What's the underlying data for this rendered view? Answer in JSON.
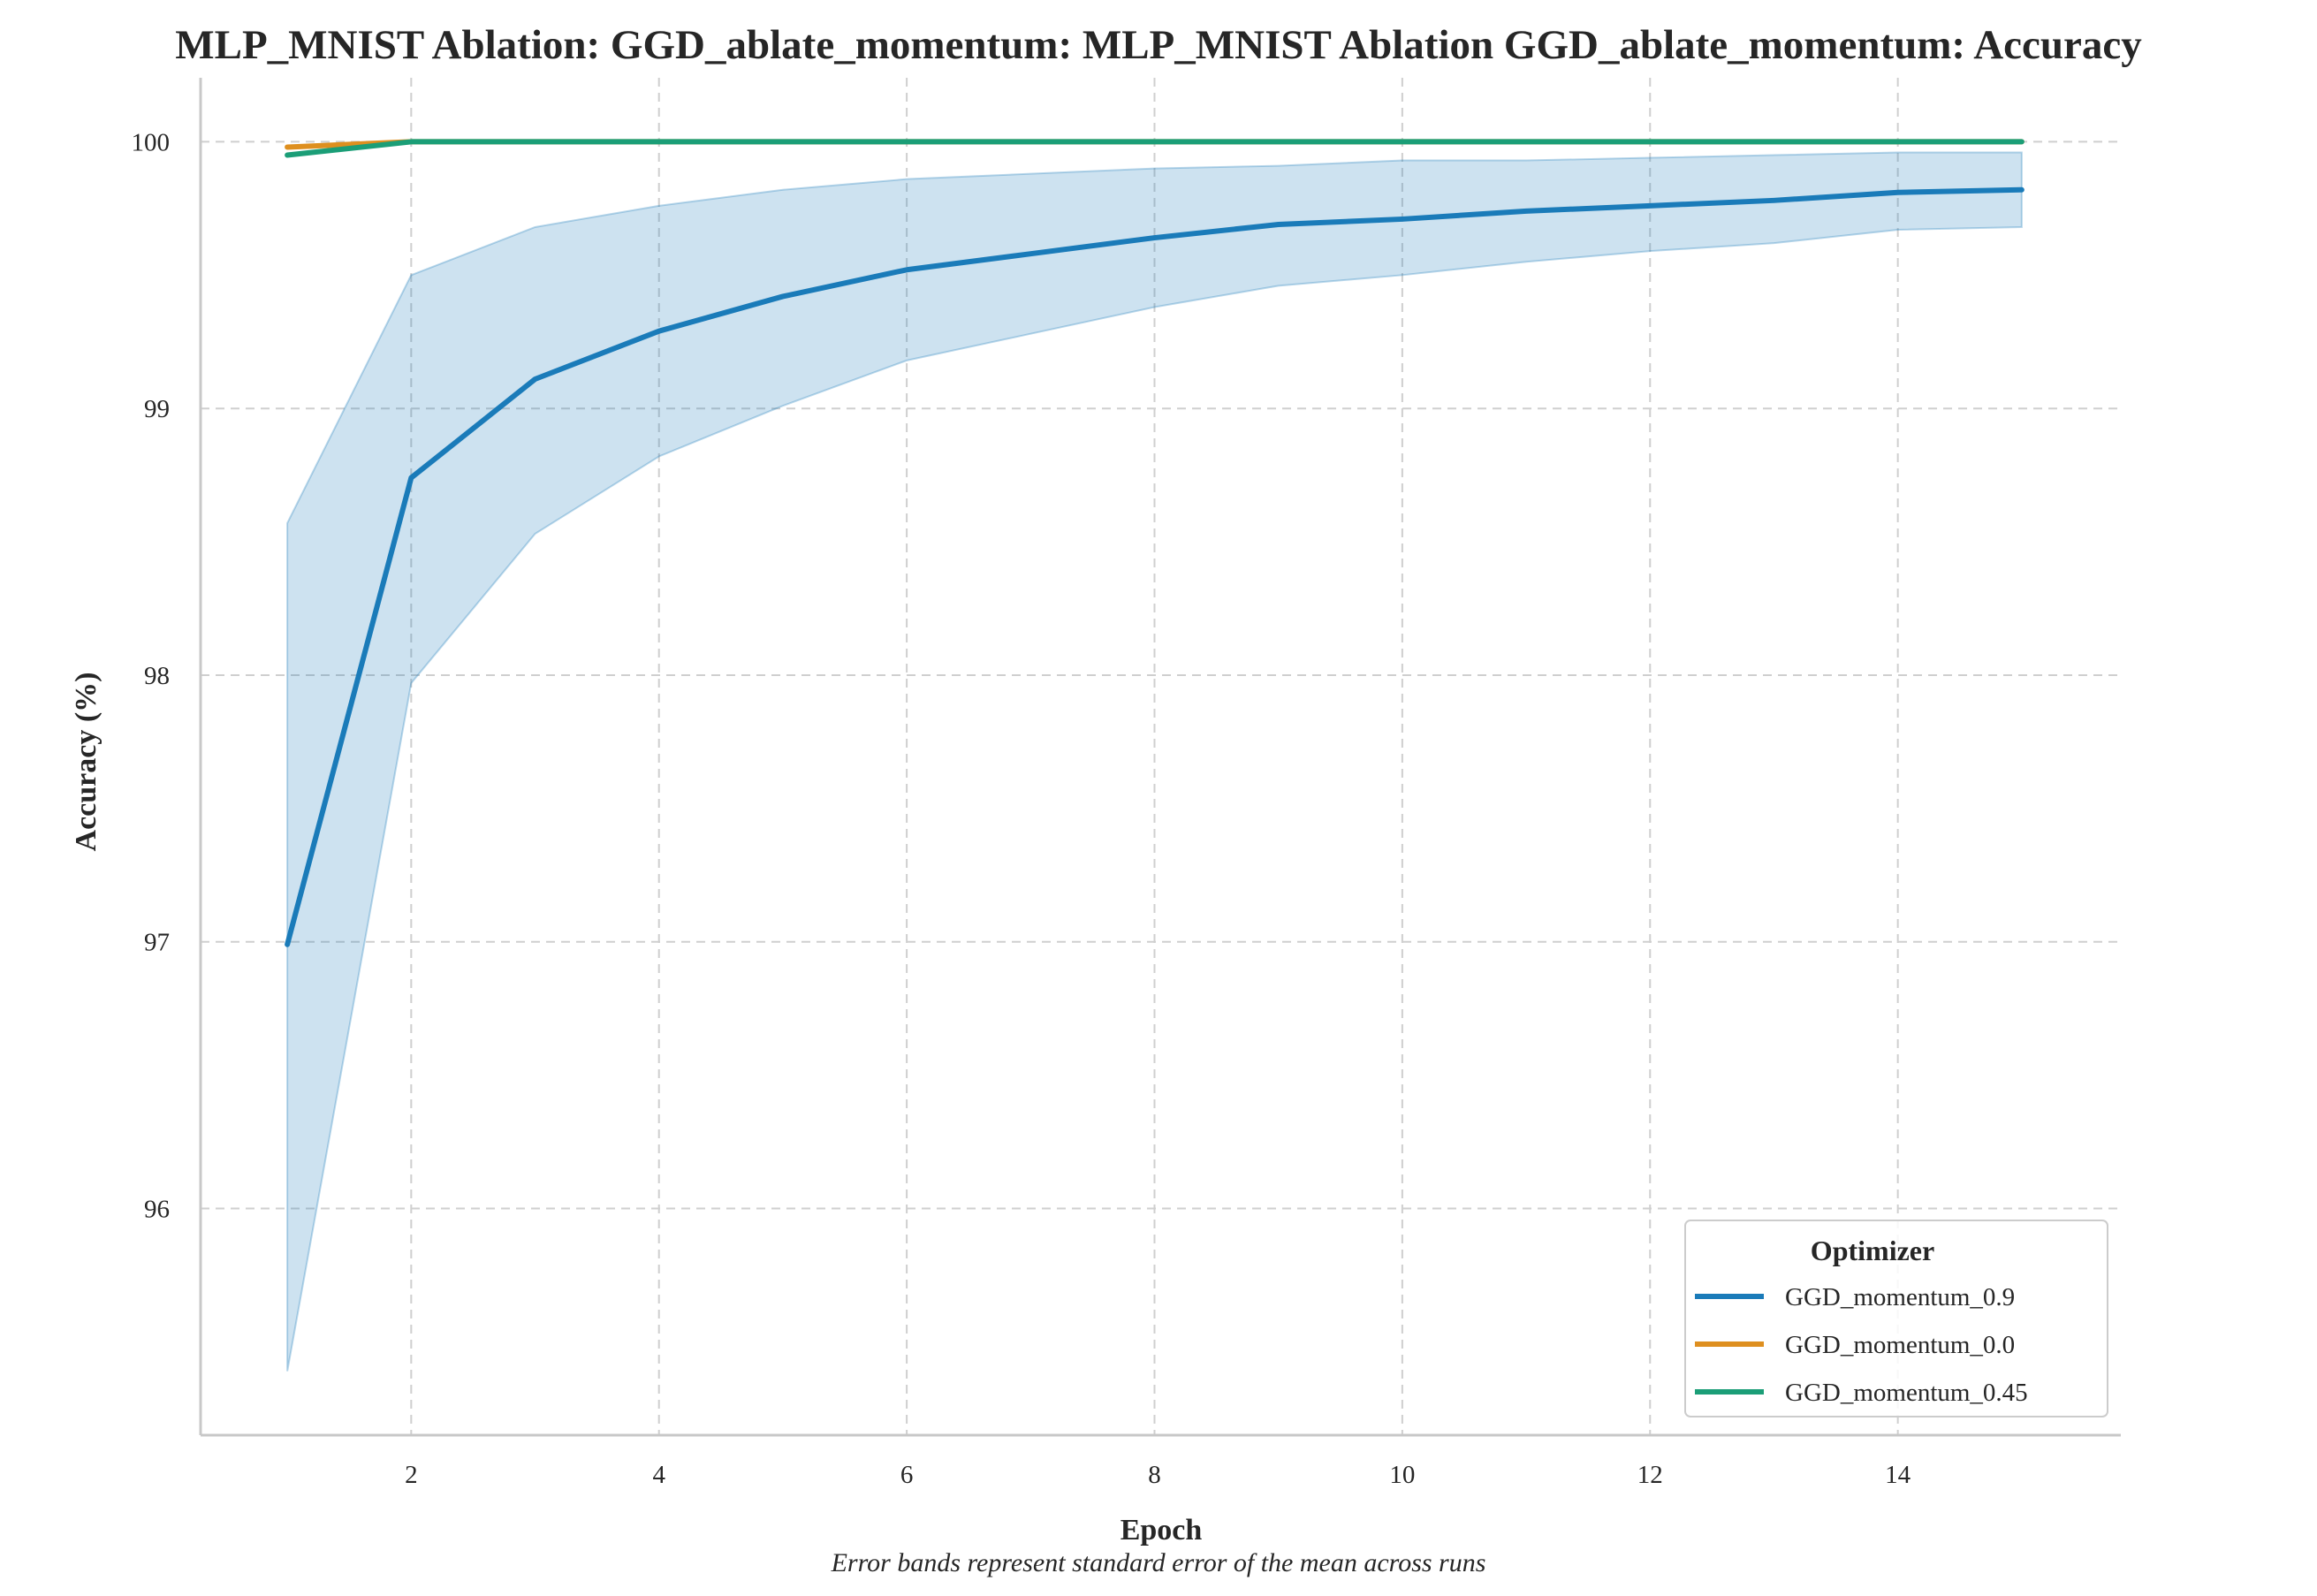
{
  "chart_data": {
    "type": "line",
    "title": "MLP_MNIST Ablation: GGD_ablate_momentum: MLP_MNIST Ablation GGD_ablate_momentum: Accuracy",
    "xlabel": "Epoch",
    "ylabel": "Accuracy (%)",
    "caption": "Error bands represent standard error of the mean across runs",
    "xlim": [
      0.3,
      15.8
    ],
    "ylim": [
      95.15,
      100.24
    ],
    "x_ticks": [
      2,
      4,
      6,
      8,
      10,
      12,
      14
    ],
    "x_tick_labels": [
      "2",
      "4",
      "6",
      "8",
      "10",
      "12",
      "14"
    ],
    "y_ticks": [
      96,
      97,
      98,
      99,
      100
    ],
    "y_tick_labels": [
      "96",
      "97",
      "98",
      "99",
      "100"
    ],
    "grid": true,
    "grid_style": "dashed",
    "legend": {
      "title": "Optimizer",
      "placement": "lower-right",
      "entries": [
        "GGD_momentum_0.9",
        "GGD_momentum_0.0",
        "GGD_momentum_0.45"
      ]
    },
    "x": [
      1,
      2,
      3,
      4,
      5,
      6,
      7,
      8,
      9,
      10,
      11,
      12,
      13,
      14,
      15
    ],
    "series": [
      {
        "name": "GGD_momentum_0.9",
        "color": "#1a7bb9",
        "values": [
          96.99,
          98.74,
          99.11,
          99.29,
          99.42,
          99.52,
          99.58,
          99.64,
          99.69,
          99.71,
          99.74,
          99.76,
          99.78,
          99.81,
          99.82
        ],
        "band_upper": [
          98.57,
          99.5,
          99.68,
          99.76,
          99.82,
          99.86,
          99.88,
          99.9,
          99.91,
          99.93,
          99.93,
          99.94,
          99.95,
          99.96,
          99.96
        ],
        "band_lower": [
          95.39,
          97.97,
          98.53,
          98.82,
          99.01,
          99.18,
          99.28,
          99.38,
          99.46,
          99.5,
          99.55,
          99.59,
          99.62,
          99.67,
          99.68
        ]
      },
      {
        "name": "GGD_momentum_0.0",
        "color": "#de8f1f",
        "values": [
          99.98,
          100.0,
          100.0,
          100.0,
          100.0,
          100.0,
          100.0,
          100.0,
          100.0,
          100.0,
          100.0,
          100.0,
          100.0,
          100.0,
          100.0
        ]
      },
      {
        "name": "GGD_momentum_0.45",
        "color": "#1b9e77",
        "values": [
          99.95,
          100.0,
          100.0,
          100.0,
          100.0,
          100.0,
          100.0,
          100.0,
          100.0,
          100.0,
          100.0,
          100.0,
          100.0,
          100.0,
          100.0
        ]
      }
    ]
  }
}
